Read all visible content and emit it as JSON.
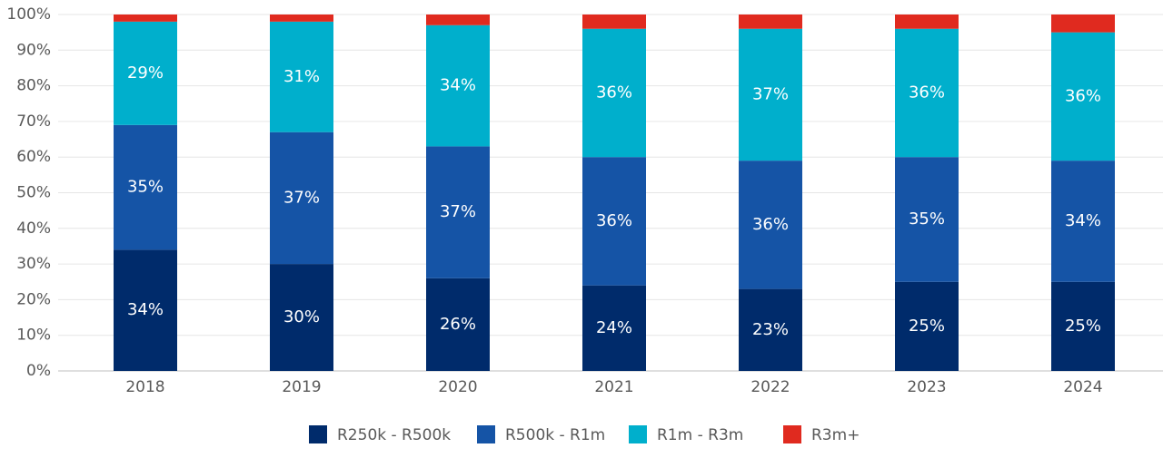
{
  "chart_data": {
    "type": "stacked_bar",
    "categories": [
      "2018",
      "2019",
      "2020",
      "2021",
      "2022",
      "2023",
      "2024"
    ],
    "series": [
      {
        "name": "R250k - R500k",
        "color": "#002b6b",
        "values": [
          34,
          30,
          26,
          24,
          23,
          25,
          25
        ],
        "value_labels": [
          "34%",
          "30%",
          "26%",
          "24%",
          "23%",
          "25%",
          "25%"
        ]
      },
      {
        "name": "R500k - R1m",
        "color": "#1554a6",
        "values": [
          35,
          37,
          37,
          36,
          36,
          35,
          34
        ],
        "value_labels": [
          "35%",
          "37%",
          "37%",
          "36%",
          "36%",
          "35%",
          "34%"
        ]
      },
      {
        "name": "R1m - R3m",
        "color": "#00afcc",
        "values": [
          29,
          31,
          34,
          36,
          37,
          36,
          36
        ],
        "value_labels": [
          "29%",
          "31%",
          "34%",
          "36%",
          "37%",
          "36%",
          "36%"
        ]
      },
      {
        "name": "R3m+",
        "color": "#e02a1f",
        "values": [
          2,
          2,
          3,
          4,
          4,
          4,
          5
        ]
      }
    ],
    "ylim": [
      0,
      100
    ],
    "yticks": [
      {
        "value": 0,
        "label": "0%"
      },
      {
        "value": 10,
        "label": "10%"
      },
      {
        "value": 20,
        "label": "20%"
      },
      {
        "value": 30,
        "label": "30%"
      },
      {
        "value": 40,
        "label": "40%"
      },
      {
        "value": 50,
        "label": "50%"
      },
      {
        "value": 60,
        "label": "60%"
      },
      {
        "value": 70,
        "label": "70%"
      },
      {
        "value": 80,
        "label": "80%"
      },
      {
        "value": 90,
        "label": "90%"
      },
      {
        "value": 100,
        "label": "100%"
      }
    ],
    "grid": true
  }
}
